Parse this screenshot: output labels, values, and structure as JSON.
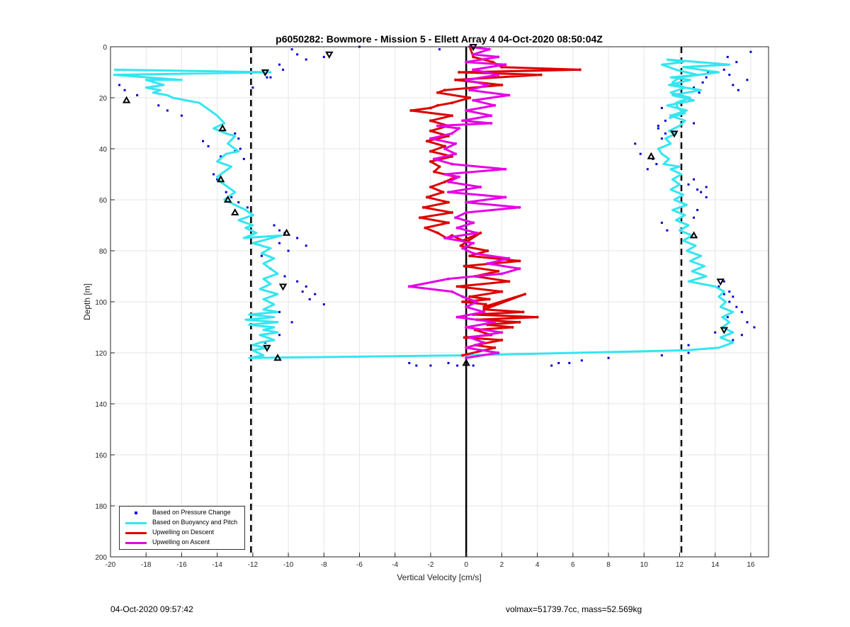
{
  "chart_data": {
    "type": "scatter",
    "title": "p6050282: Bowmore - Mission 5 - Ellett Array 4 04-Oct-2020 08:50:04Z",
    "xlabel": "Vertical Velocity [cm/s]",
    "ylabel": "Depth [m]",
    "xlim": [
      -20,
      17
    ],
    "ylim": [
      0,
      200
    ],
    "y_reversed": true,
    "xticks": [
      -20,
      -18,
      -16,
      -14,
      -12,
      -10,
      -8,
      -6,
      -4,
      -2,
      0,
      2,
      4,
      6,
      8,
      10,
      12,
      14,
      16
    ],
    "yticks": [
      0,
      20,
      40,
      60,
      80,
      100,
      120,
      140,
      160,
      180,
      200
    ],
    "grid": true,
    "legend_position": "bottom-left",
    "reference_lines": [
      {
        "x": -12.1,
        "style": "dashed",
        "color": "#000000"
      },
      {
        "x": 12.1,
        "style": "dashed",
        "color": "#000000"
      },
      {
        "x": 0,
        "style": "solid",
        "color": "#000000"
      }
    ],
    "series": [
      {
        "name": "Based on Pressure Change",
        "kind": "points",
        "color": "#0000cc",
        "x": [
          -9.8,
          -9.5,
          -9.0,
          -8.0,
          -6.0,
          -1.5,
          0.2,
          -10.3,
          -11.0,
          -10.5,
          -12.0,
          -11.2,
          -19.5,
          -19.2,
          -18.5,
          -17.3,
          -16.8,
          -16.0,
          -14.8,
          -14.5,
          -13.8,
          -13.0,
          -12.8,
          -12.7,
          -12.5,
          -13.0,
          -14.2,
          -14.0,
          -13.5,
          -13.2,
          -12.8,
          -12.3,
          -12.0,
          -10.8,
          -10.5,
          -10.2,
          -9.5,
          -9.0,
          -10.0,
          -10.5,
          -11.5,
          -11.0,
          -10.2,
          -9.5,
          -9.0,
          -8.5,
          -9.2,
          -8.8,
          -8.0,
          -10.5,
          -9.8,
          -11.0,
          -10.5,
          -11.3,
          -3.2,
          -2.8,
          -2.0,
          -1.0,
          -0.5,
          0.4,
          4.8,
          5.2,
          5.8,
          6.5,
          8.0,
          11.0,
          12.5,
          16.0,
          15.2,
          14.7,
          14.5,
          13.6,
          13.5,
          13.3,
          12.8,
          13.1,
          14.8,
          15.0,
          15.3,
          15.8,
          12.8,
          11.2,
          10.8,
          9.5,
          9.8,
          10.5,
          10.7,
          10.2,
          11.0,
          11.2,
          11.5,
          10.8,
          11.0,
          12.8,
          12.5,
          13.5,
          13.2,
          13.0,
          13.5,
          13.0,
          12.8,
          11.0,
          11.3,
          14.2,
          14.5,
          14.8,
          15.0,
          15.2,
          15.5,
          15.8,
          16.2,
          15.5,
          15.0,
          14.5,
          14.8,
          14.7,
          14.0,
          12.5
        ],
        "y": [
          1,
          3,
          5,
          4,
          0,
          1,
          0,
          9,
          12,
          7,
          16,
          12,
          15,
          17,
          19,
          23,
          25,
          27,
          37,
          39,
          43,
          34,
          36,
          40,
          44,
          41,
          50,
          52,
          57,
          59,
          61,
          63,
          66,
          70,
          72,
          73,
          75,
          78,
          80,
          77,
          82,
          87,
          90,
          92,
          94,
          97,
          96,
          99,
          101,
          104,
          108,
          110,
          113,
          116,
          124,
          125,
          125,
          124,
          125,
          125,
          125,
          124,
          124,
          123,
          122,
          121,
          120,
          2,
          6,
          4,
          9,
          10,
          12,
          14,
          16,
          18,
          11,
          15,
          17,
          13,
          30,
          29,
          31,
          38,
          42,
          44,
          46,
          48,
          24,
          34,
          27,
          32,
          36,
          52,
          54,
          55,
          57,
          56,
          59,
          64,
          67,
          69,
          72,
          94,
          92,
          96,
          98,
          102,
          104,
          108,
          110,
          113,
          115,
          97,
          100,
          106,
          112,
          117
        ],
        "label": "Based on Pressure Change"
      },
      {
        "name": "Based on Buoyancy and Pitch",
        "kind": "line",
        "color": "#33e6f0",
        "x": [
          -19.8,
          -11.0,
          -19.8,
          -16.0,
          -18.0,
          -17.0,
          -18.0,
          -17.2,
          -17.6,
          -16.8,
          -16.5,
          -15.0,
          -14.0,
          -13.6,
          -14.2,
          -13.5,
          -13.0,
          -13.4,
          -12.8,
          -13.5,
          -14.0,
          -13.2,
          -13.6,
          -14.0,
          -13.8,
          -13.4,
          -13.0,
          -13.2,
          -13.6,
          -13.0,
          -12.4,
          -12.0,
          -12.8,
          -12.0,
          -12.4,
          -11.8,
          -12.5,
          -10.4,
          -12.0,
          -11.0,
          -11.5,
          -10.8,
          -11.4,
          -11.0,
          -10.6,
          -11.4,
          -11.0,
          -11.6,
          -10.6,
          -11.4,
          -10.8,
          -11.4,
          -10.6,
          -12.2,
          -10.8,
          -12.4,
          -10.6,
          -12.2,
          -10.8,
          -11.4,
          -10.6,
          -11.6,
          -10.8,
          -11.6,
          -12.0,
          -11.2,
          -12.0,
          -11.4,
          -12.2,
          -0.2,
          12.4,
          14.2,
          15.0,
          14.3,
          15.0,
          14.4,
          14.8,
          14.4,
          15.0,
          14.3,
          14.6,
          14.2,
          14.5,
          14.0,
          12.5,
          13.5,
          12.7,
          13.4,
          12.6,
          13.2,
          12.4,
          12.9,
          12.2,
          12.7,
          12.0,
          12.5,
          11.8,
          12.3,
          11.6,
          12.4,
          11.7,
          12.2,
          11.5,
          12.0,
          11.6,
          12.1,
          11.5,
          12.0,
          11.1,
          11.4,
          11.0,
          10.8,
          11.5,
          11.2,
          11.8,
          11.4,
          12.0,
          12.3,
          11.5,
          12.4,
          11.3,
          12.8,
          11.6,
          13.2,
          11.4,
          12.6,
          11.5,
          13.0,
          11.8,
          11.0,
          12.2,
          11.3,
          14.8,
          12.2,
          14.2,
          12.0,
          11.6,
          12.3,
          11.5,
          12.6,
          11.8,
          11.9,
          12.3,
          11.4
        ],
        "y": [
          9,
          10,
          11,
          13,
          13,
          15,
          16,
          17,
          18,
          19,
          20,
          22,
          27,
          30,
          32,
          34,
          35,
          38,
          41,
          42,
          45,
          47,
          49,
          51,
          53,
          55,
          57,
          58,
          60,
          62,
          64,
          66,
          68,
          70,
          71,
          73,
          75,
          74,
          77,
          79,
          81,
          83,
          85,
          87,
          89,
          91,
          93,
          95,
          97,
          99,
          101,
          103,
          104,
          105,
          106,
          107,
          108,
          109,
          110,
          111,
          112,
          113,
          115,
          116,
          117,
          118,
          119,
          121,
          122,
          121,
          119,
          118,
          116,
          114,
          112,
          110,
          108,
          106,
          104,
          102,
          100,
          98,
          96,
          94,
          92,
          90,
          88,
          86,
          84,
          82,
          80,
          78,
          76,
          74,
          72,
          70,
          68,
          66,
          64,
          62,
          60,
          58,
          56,
          54,
          52,
          50,
          48,
          47,
          46,
          44,
          42,
          40,
          38,
          36,
          34,
          33,
          31,
          29,
          27,
          25,
          23,
          21,
          19,
          17,
          15,
          13,
          12,
          11,
          9,
          7,
          6,
          5,
          7,
          8,
          10,
          12,
          14,
          16,
          18,
          20,
          22,
          24,
          26,
          28
        ]
      },
      {
        "name": "Upwelling on Descent",
        "kind": "line",
        "color": "#dd0000",
        "x": [
          0.2,
          0.4,
          1.5,
          2.0,
          6.4,
          -0.4,
          4.2,
          -0.6,
          2.0,
          -1.2,
          -1.6,
          0.2,
          -0.8,
          -1.6,
          -2.0,
          -3.1,
          -0.8,
          -2.0,
          -1.0,
          -2.0,
          -1.0,
          -2.2,
          -1.2,
          -2.0,
          -0.8,
          -2.0,
          -1.5,
          -1.8,
          -0.6,
          -1.2,
          -2.0,
          -1.3,
          -2.2,
          -1.0,
          -2.4,
          -0.8,
          -2.6,
          -1.0,
          -2.3,
          -1.6,
          -1.1,
          -0.8,
          -0.2,
          0.8,
          -0.3,
          1.2,
          0.2,
          3.0,
          -0.1,
          1.8,
          0.5,
          2.4,
          -0.5,
          2.0,
          0.2,
          1.3,
          -0.2,
          1.1,
          1.0,
          3.3,
          1.0,
          3.2,
          0.4,
          4.0,
          0.6,
          3.0,
          1.2,
          2.6,
          0.5,
          1.4,
          -0.1,
          2.0,
          0.5,
          1.6,
          -0.2
        ],
        "y": [
          0,
          4,
          6,
          8,
          9,
          10,
          11,
          13,
          15,
          17,
          18,
          20,
          22,
          23,
          24,
          25,
          27,
          29,
          31,
          33,
          35,
          37,
          39,
          41,
          43,
          45,
          47,
          49,
          51,
          53,
          55,
          57,
          59,
          61,
          63,
          65,
          67,
          69,
          71,
          73,
          75,
          74,
          76,
          73,
          78,
          80,
          82,
          84,
          86,
          88,
          90,
          92,
          94,
          96,
          98,
          99,
          100,
          101,
          102,
          97,
          103,
          104,
          105,
          106,
          107,
          108,
          109,
          110,
          111,
          113,
          114,
          115,
          117,
          118,
          121
        ]
      },
      {
        "name": "Upwelling on Ascent",
        "kind": "line",
        "color": "#e600e6",
        "x": [
          0.2,
          1.3,
          0.4,
          1.8,
          0.0,
          2.2,
          0.4,
          1.8,
          0.0,
          1.2,
          0.2,
          2.4,
          0.4,
          1.6,
          0.0,
          1.4,
          -0.2,
          1.4,
          -1.6,
          -0.4,
          -0.8,
          -2.0,
          -0.6,
          -1.2,
          -0.6,
          -1.8,
          -0.8,
          2.2,
          -1.2,
          -0.4,
          -1.0,
          0.8,
          -1.0,
          2.2,
          0.0,
          3.0,
          0.0,
          -0.6,
          0.4,
          -0.5,
          0.6,
          -1.2,
          0.4,
          -0.2,
          0.4,
          2.4,
          1.2,
          3.0,
          2.0,
          -1.0,
          -3.2,
          -0.8,
          -0.2,
          0.6,
          0.0,
          1.0,
          -0.5,
          1.6,
          0.0,
          2.0,
          0.2,
          1.0,
          0.0,
          1.8,
          0.0
        ],
        "y": [
          0,
          1,
          3,
          4,
          6,
          7,
          9,
          11,
          13,
          15,
          17,
          19,
          21,
          23,
          25,
          27,
          29,
          30,
          31,
          32,
          34,
          36,
          38,
          40,
          42,
          44,
          46,
          48,
          50,
          51,
          53,
          55,
          57,
          59,
          61,
          63,
          65,
          67,
          69,
          71,
          73,
          75,
          77,
          79,
          81,
          83,
          85,
          87,
          89,
          91,
          94,
          96,
          98,
          100,
          102,
          104,
          106,
          108,
          110,
          112,
          114,
          116,
          118,
          120,
          122
        ]
      },
      {
        "name": "Turning Point Markers",
        "kind": "markers",
        "color": "#000000",
        "x": [
          0.4,
          -7.7,
          -11.3,
          -19.1,
          -13.7,
          -13.8,
          -13.4,
          -13.0,
          -10.1,
          -10.3,
          -11.2,
          -10.6,
          0.0,
          11.7,
          10.4,
          12.8,
          14.3,
          14.5
        ],
        "y": [
          0,
          3,
          10,
          21,
          32,
          52,
          60,
          65,
          73,
          94,
          118,
          122,
          124,
          34,
          43,
          74,
          92,
          111
        ],
        "orientation": [
          "down",
          "down",
          "down",
          "up",
          "up",
          "up",
          "up",
          "up",
          "up",
          "down",
          "down",
          "up",
          "up",
          "down",
          "up",
          "up",
          "down",
          "down"
        ]
      }
    ]
  },
  "legend": {
    "items": [
      {
        "label": "Based on Pressure Change",
        "color": "#0000cc",
        "kind": "points"
      },
      {
        "label": "Based on Buoyancy and Pitch",
        "color": "#33e6f0",
        "kind": "line"
      },
      {
        "label": "Upwelling on Descent",
        "color": "#dd0000",
        "kind": "line"
      },
      {
        "label": "Upwelling on Ascent",
        "color": "#e600e6",
        "kind": "line"
      }
    ]
  },
  "footer": {
    "timestamp": "04-Oct-2020 09:57:42",
    "stats": "volmax=51739.7cc, mass=52.569kg"
  }
}
